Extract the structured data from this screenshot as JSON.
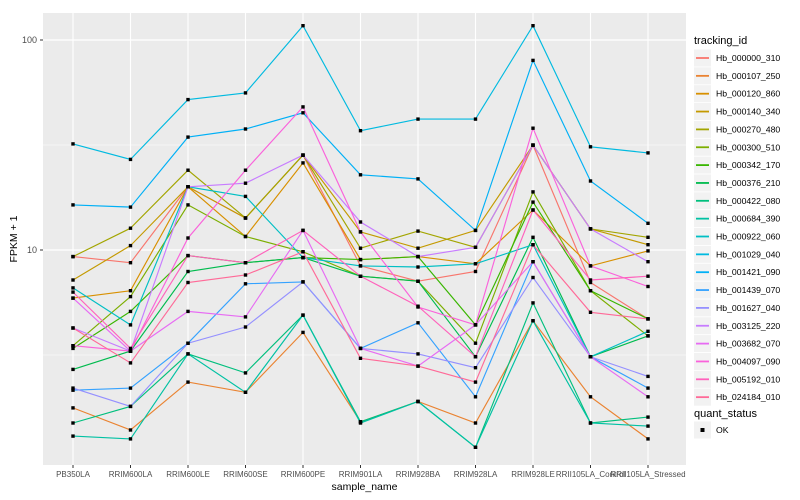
{
  "chart_data": {
    "type": "line",
    "title": "",
    "xlabel": "sample_name",
    "ylabel": "FPKM + 1",
    "y_scale": "log10",
    "ylim": [
      1.07,
      135
    ],
    "grid": "on",
    "panel_bg": "#EBEBEB",
    "grid_color": "#FFFFFF",
    "axis_text_color": "#4D4D4D",
    "title_text_color": "#000000",
    "marker_color": "#000000",
    "y_ticks": [
      {
        "label": "100",
        "value": 100
      },
      {
        "label": "10",
        "value": 10
      }
    ],
    "y_minor_gridlines": [
      31.62,
      3.162
    ],
    "categories": [
      "PB350LA",
      "RRIM600LA",
      "RRIM600LE",
      "RRIM600SE",
      "RRIM600PE",
      "RRIM901LA",
      "RRIM928BA",
      "RRIM928LA",
      "RRIM928LE",
      "RRII105LA_Control",
      "RRII105LA_Stressed"
    ],
    "series": [
      {
        "name": "Hb_000000_310",
        "color": "#F8766D",
        "values": [
          9.3,
          8.7,
          20,
          14.2,
          28.3,
          8.4,
          7.1,
          7.9,
          31.6,
          7,
          4.7
        ]
      },
      {
        "name": "Hb_000107_250",
        "color": "#EA8331",
        "values": [
          1.77,
          1.39,
          2.35,
          2.1,
          4.05,
          1.52,
          1.9,
          1.5,
          4.6,
          2,
          1.26
        ]
      },
      {
        "name": "Hb_000120_860",
        "color": "#D89000",
        "values": [
          5.9,
          6.4,
          20,
          11.6,
          26,
          9,
          9.3,
          8.6,
          15.5,
          8.4,
          9.9
        ]
      },
      {
        "name": "Hb_000140_340",
        "color": "#C49A00",
        "values": [
          7.2,
          10.5,
          20,
          14.2,
          28.3,
          12.2,
          10.2,
          12.4,
          31.6,
          12.6,
          10.6
        ]
      },
      {
        "name": "Hb_000270_480",
        "color": "#A3A500",
        "values": [
          9.3,
          12.7,
          24,
          14.2,
          28.3,
          10.2,
          12.3,
          10.3,
          31.6,
          12.6,
          11.5
        ]
      },
      {
        "name": "Hb_000300_510",
        "color": "#7CAE00",
        "values": [
          3.5,
          6,
          16.4,
          11.6,
          9.8,
          7.5,
          7.1,
          3.6,
          18.9,
          6.4,
          3.9
        ]
      },
      {
        "name": "Hb_000342_170",
        "color": "#39B600",
        "values": [
          3.4,
          5.1,
          9.4,
          8.7,
          9.2,
          9,
          9.3,
          4.4,
          16.9,
          6.4,
          4.7
        ]
      },
      {
        "name": "Hb_000376_210",
        "color": "#00BB4E",
        "values": [
          2.7,
          3.3,
          7.9,
          8.7,
          9.2,
          7.5,
          7.1,
          3.1,
          11.5,
          3.1,
          3.9
        ]
      },
      {
        "name": "Hb_000422_080",
        "color": "#00BF7D",
        "values": [
          1.5,
          1.8,
          3.2,
          2.6,
          4.9,
          1.52,
          1.9,
          1.15,
          5.6,
          1.5,
          1.6
        ]
      },
      {
        "name": "Hb_000684_390",
        "color": "#00C1A3",
        "values": [
          1.3,
          1.26,
          3.2,
          2.1,
          4.9,
          1.5,
          1.9,
          1.15,
          4.6,
          1.5,
          1.45
        ]
      },
      {
        "name": "Hb_000922_060",
        "color": "#00BFC4",
        "values": [
          6.6,
          4.4,
          20,
          18,
          9.2,
          8.4,
          8.3,
          8.6,
          10.6,
          3.1,
          4.1
        ]
      },
      {
        "name": "Hb_001029_040",
        "color": "#00BAE0",
        "values": [
          32,
          27,
          52,
          56,
          117,
          37,
          42,
          42,
          117,
          31,
          29
        ]
      },
      {
        "name": "Hb_001421_090",
        "color": "#00B0F6",
        "values": [
          16.4,
          16,
          34.5,
          37.7,
          45,
          22.8,
          21.8,
          12.4,
          80,
          21.3,
          13.4
        ]
      },
      {
        "name": "Hb_001439_070",
        "color": "#35A2FF",
        "values": [
          2.15,
          2.2,
          3.6,
          6.9,
          7.05,
          3.4,
          4.5,
          2,
          8.8,
          3.1,
          2.2
        ]
      },
      {
        "name": "Hb_001627_040",
        "color": "#9590FF",
        "values": [
          2.2,
          1.8,
          3.6,
          4.3,
          7.05,
          3.4,
          3.2,
          2.75,
          7.4,
          3.1,
          2.5
        ]
      },
      {
        "name": "Hb_003125_220",
        "color": "#C77CFF",
        "values": [
          4.25,
          3.3,
          20,
          20.8,
          28.3,
          13.6,
          9.3,
          10.3,
          31.6,
          12.6,
          8.8
        ]
      },
      {
        "name": "Hb_003682_070",
        "color": "#E76BF3",
        "values": [
          5.9,
          3.3,
          5.1,
          4.8,
          12.4,
          3.4,
          2.8,
          4.4,
          8.8,
          3.1,
          2
        ]
      },
      {
        "name": "Hb_004097_090",
        "color": "#FA62DB",
        "values": [
          3.5,
          3.3,
          11.4,
          24,
          48,
          12.2,
          5.35,
          4.4,
          38,
          8.4,
          6.7
        ]
      },
      {
        "name": "Hb_005192_010",
        "color": "#FF62BC",
        "values": [
          6.3,
          3.4,
          9.4,
          8.7,
          12.4,
          7.5,
          5.4,
          3.1,
          15.5,
          7.2,
          7.5
        ]
      },
      {
        "name": "Hb_024184_010",
        "color": "#FF6A98",
        "values": [
          4.25,
          2.9,
          7,
          7.6,
          9.8,
          3.05,
          2.8,
          2.35,
          10.6,
          5.05,
          4.7
        ]
      }
    ],
    "legend": {
      "position": "right",
      "color_title": "tracking_id",
      "shape_title": "quant_status",
      "shape_items": [
        {
          "label": "OK",
          "marker": "black-square"
        }
      ]
    }
  }
}
